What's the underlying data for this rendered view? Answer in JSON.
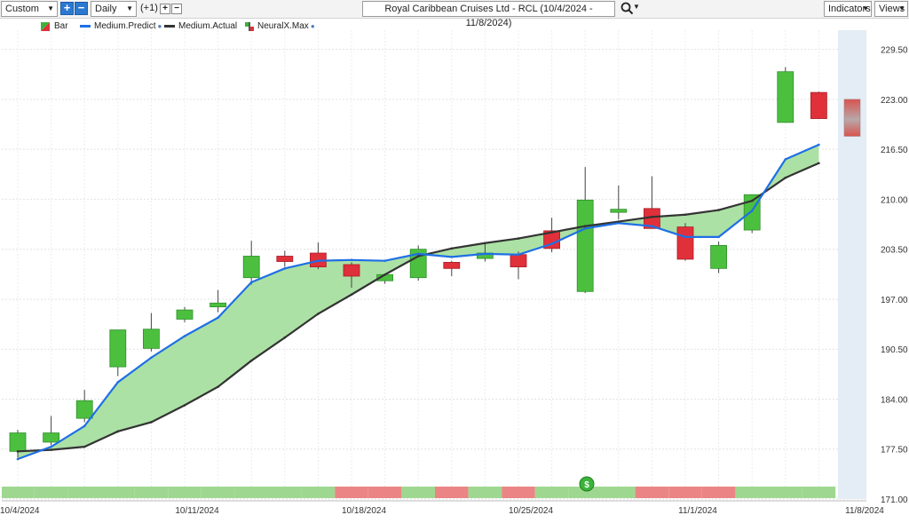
{
  "toolbar": {
    "period_select": "Custom",
    "interval_select": "Daily",
    "offset_label": "(+1)",
    "chart_title": "Royal Caribbean Cruises Ltd - RCL (10/4/2024 - 11/8/2024)",
    "indicators_label": "Indicators",
    "views_label": "Views",
    "icons": [
      "plus-icon",
      "minus-icon",
      "search-icon",
      "chevron-down-icon"
    ]
  },
  "legend": [
    {
      "label": "Bar",
      "color": "#3bb33b",
      "color2": "#e0303a"
    },
    {
      "label": "Medium.Predict",
      "color": "#1f6fe5"
    },
    {
      "label": "Medium.Actual",
      "color": "#333333"
    },
    {
      "label": "NeuralX.Max",
      "color": "#3bb33b",
      "color2": "#e0303a"
    }
  ],
  "colors": {
    "up": "#4cbf3f",
    "down": "#e0303a",
    "predict": "#1f6fe5",
    "actual": "#333333",
    "fill": "#a8dfa0",
    "forecast_bg": "#e4ecf5",
    "signal_up": "#9ed890",
    "signal_down": "#eb8585"
  },
  "chart_data": {
    "type": "candlestick",
    "ylim": [
      171,
      232
    ],
    "y_ticks": [
      "171.00",
      "177.50",
      "184.00",
      "190.50",
      "197.00",
      "203.50",
      "210.00",
      "216.50",
      "223.00",
      "229.50"
    ],
    "x_tick_labels": [
      "10/4/2024",
      "10/11/2024",
      "10/18/2024",
      "10/25/2024",
      "11/1/2024",
      "11/8/2024"
    ],
    "x_tick_index": [
      0,
      5,
      10,
      15,
      20,
      25
    ],
    "candles": [
      {
        "o": 177.2,
        "h": 180.0,
        "l": 176.4,
        "c": 179.6
      },
      {
        "o": 178.4,
        "h": 181.8,
        "l": 178.0,
        "c": 179.6
      },
      {
        "o": 181.5,
        "h": 185.2,
        "l": 181.0,
        "c": 183.8
      },
      {
        "o": 188.2,
        "h": 193.0,
        "l": 187.0,
        "c": 193.0
      },
      {
        "o": 190.6,
        "h": 195.2,
        "l": 190.2,
        "c": 193.1
      },
      {
        "o": 194.4,
        "h": 196.0,
        "l": 194.0,
        "c": 195.6
      },
      {
        "o": 196.0,
        "h": 198.2,
        "l": 195.3,
        "c": 196.5
      },
      {
        "o": 199.8,
        "h": 204.6,
        "l": 198.9,
        "c": 202.6
      },
      {
        "o": 202.6,
        "h": 203.3,
        "l": 201.2,
        "c": 201.9
      },
      {
        "o": 203.0,
        "h": 204.4,
        "l": 200.9,
        "c": 201.2
      },
      {
        "o": 201.5,
        "h": 201.8,
        "l": 198.5,
        "c": 200.0
      },
      {
        "o": 199.4,
        "h": 200.0,
        "l": 199.0,
        "c": 200.2
      },
      {
        "o": 199.8,
        "h": 204.0,
        "l": 199.4,
        "c": 203.5
      },
      {
        "o": 201.8,
        "h": 202.0,
        "l": 200.0,
        "c": 201.0
      },
      {
        "o": 202.3,
        "h": 204.2,
        "l": 201.9,
        "c": 203.0
      },
      {
        "o": 202.8,
        "h": 203.2,
        "l": 199.6,
        "c": 201.2
      },
      {
        "o": 205.9,
        "h": 207.6,
        "l": 203.1,
        "c": 203.6
      },
      {
        "o": 198.0,
        "h": 214.2,
        "l": 197.8,
        "c": 209.9
      },
      {
        "o": 208.3,
        "h": 211.8,
        "l": 207.4,
        "c": 208.7
      },
      {
        "o": 208.8,
        "h": 213.0,
        "l": 206.2,
        "c": 206.2
      },
      {
        "o": 206.4,
        "h": 206.9,
        "l": 202.0,
        "c": 202.2
      },
      {
        "o": 201.0,
        "h": 204.5,
        "l": 200.4,
        "c": 204.0
      },
      {
        "o": 206.0,
        "h": 210.6,
        "l": 205.6,
        "c": 210.6
      },
      {
        "o": 220.0,
        "h": 227.2,
        "l": 220.0,
        "c": 226.6
      },
      {
        "o": 223.9,
        "h": 224.0,
        "l": 220.5,
        "c": 220.5
      }
    ],
    "neuralx_max": {
      "index": 25,
      "high": 223.0,
      "low": 218.2
    },
    "series": [
      {
        "name": "Medium.Predict",
        "x": [
          0,
          1,
          2,
          3,
          4,
          5,
          6,
          7,
          8,
          9,
          10,
          11,
          12,
          13,
          14,
          15,
          16,
          17,
          18,
          19,
          20,
          21,
          22,
          23,
          24
        ],
        "values": [
          176.2,
          177.8,
          180.5,
          186.2,
          189.4,
          192.2,
          194.6,
          199.2,
          201.0,
          202.0,
          202.1,
          202.0,
          202.9,
          202.5,
          202.9,
          202.8,
          204.2,
          206.2,
          206.9,
          206.5,
          205.1,
          205.1,
          208.5,
          215.2,
          217.1
        ]
      },
      {
        "name": "Medium.Actual",
        "x": [
          0,
          1,
          2,
          3,
          4,
          5,
          6,
          7,
          8,
          9,
          10,
          11,
          12,
          13,
          14,
          15,
          16,
          17,
          18,
          19,
          20,
          21,
          22,
          23,
          24
        ],
        "values": [
          177.2,
          177.4,
          177.8,
          179.8,
          181.0,
          183.2,
          185.6,
          189.0,
          192.0,
          195.1,
          197.6,
          200.2,
          202.6,
          203.6,
          204.3,
          204.9,
          205.7,
          206.5,
          207.1,
          207.7,
          208.0,
          208.6,
          209.8,
          212.8,
          214.7
        ]
      }
    ],
    "signal_strip": [
      "up",
      "up",
      "up",
      "up",
      "up",
      "up",
      "up",
      "up",
      "up",
      "up",
      "down",
      "down",
      "up",
      "down",
      "up",
      "down",
      "up",
      "up",
      "up",
      "down",
      "down",
      "down",
      "up",
      "up",
      "up"
    ]
  }
}
